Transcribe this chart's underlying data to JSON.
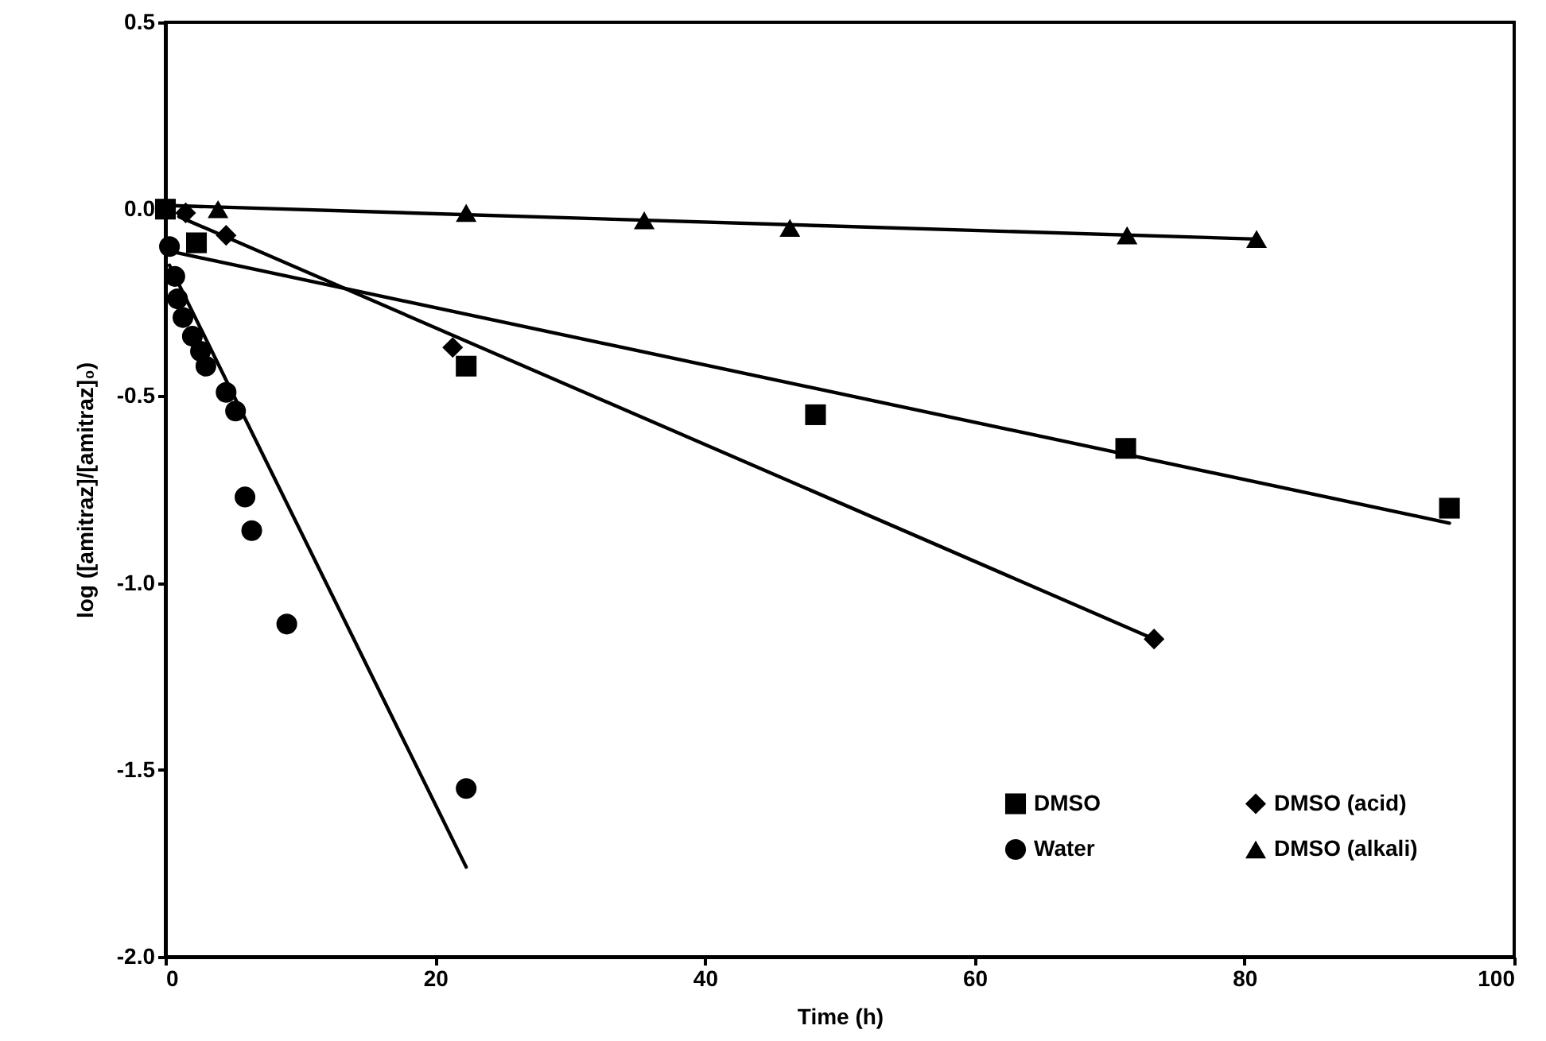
{
  "chart_data": {
    "type": "scatter",
    "xlabel": "Time (h)",
    "ylabel": "log ([amitraz]/[amitraz]₀)",
    "xlim": [
      0,
      100
    ],
    "xticks": [
      0,
      20,
      40,
      60,
      80,
      100
    ],
    "ylim": [
      -2.0,
      0.5
    ],
    "yticks": [
      {
        "value": -2.0,
        "label": "-2.0"
      },
      {
        "value": -1.5,
        "label": "-1.5"
      },
      {
        "value": -1.0,
        "label": "-1.0"
      },
      {
        "value": -0.5,
        "label": "-0.5"
      },
      {
        "value": 0.0,
        "label": "0.0"
      },
      {
        "value": 0.5,
        "label": "0.5"
      }
    ],
    "grid": false,
    "legend": "bottom right",
    "series": [
      {
        "name": "DMSO",
        "color": "#000000",
        "marker": "square",
        "x": [
          0,
          2.3,
          22.3,
          48.2,
          71.2,
          95.2
        ],
        "values": [
          0.0,
          -0.09,
          -0.42,
          -0.55,
          -0.64,
          -0.8
        ]
      },
      {
        "name": "DMSO (acid)",
        "color": "#000000",
        "marker": "diamond",
        "x": [
          1.5,
          4.5,
          21.3,
          73.3
        ],
        "values": [
          -0.01,
          -0.07,
          -0.37,
          -1.15
        ]
      },
      {
        "name": "Water",
        "color": "#000000",
        "marker": "circle",
        "x": [
          0.3,
          0.7,
          0.9,
          1.3,
          2.0,
          2.6,
          3.0,
          4.5,
          5.2,
          5.9,
          6.4,
          9.0,
          22.3
        ],
        "values": [
          -0.1,
          -0.18,
          -0.24,
          -0.29,
          -0.34,
          -0.38,
          -0.42,
          -0.49,
          -0.54,
          -0.77,
          -0.86,
          -1.11,
          -1.55
        ]
      },
      {
        "name": "DMSO (alkali)",
        "color": "#000000",
        "marker": "triangle",
        "x": [
          3.9,
          22.3,
          35.5,
          46.3,
          71.3,
          80.9
        ],
        "values": [
          0.0,
          -0.01,
          -0.03,
          -0.05,
          -0.07,
          -0.08
        ]
      },
      {
        "type": "line",
        "color": "#000000",
        "x": [
          0,
          95.2
        ],
        "values": [
          -0.11,
          -0.84
        ]
      },
      {
        "type": "line",
        "color": "#000000",
        "x": [
          1.0,
          73.3
        ],
        "values": [
          -0.02,
          -1.15
        ]
      },
      {
        "type": "line",
        "color": "#000000",
        "x": [
          0.3,
          22.3
        ],
        "values": [
          -0.15,
          -1.76
        ]
      },
      {
        "type": "line",
        "color": "#000000",
        "x": [
          0,
          80.9
        ],
        "values": [
          0.01,
          -0.08
        ]
      }
    ]
  }
}
